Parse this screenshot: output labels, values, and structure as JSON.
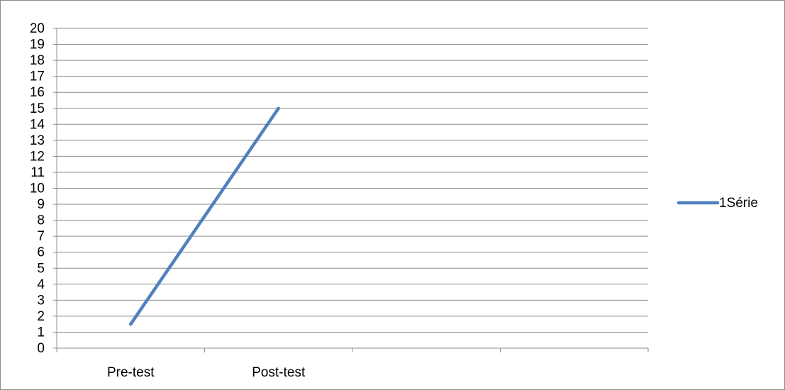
{
  "chart_data": {
    "type": "line",
    "categories": [
      "Pre-test",
      "Post-test",
      null,
      null
    ],
    "series": [
      {
        "name": "1Série",
        "color": "#4f81bd",
        "values": [
          1.5,
          15,
          null,
          null
        ]
      }
    ],
    "ylim": [
      0,
      20
    ],
    "yticks": [
      0,
      1,
      2,
      3,
      4,
      5,
      6,
      7,
      8,
      9,
      10,
      11,
      12,
      13,
      14,
      15,
      16,
      17,
      18,
      19,
      20
    ],
    "grid": true,
    "legend": "right"
  }
}
